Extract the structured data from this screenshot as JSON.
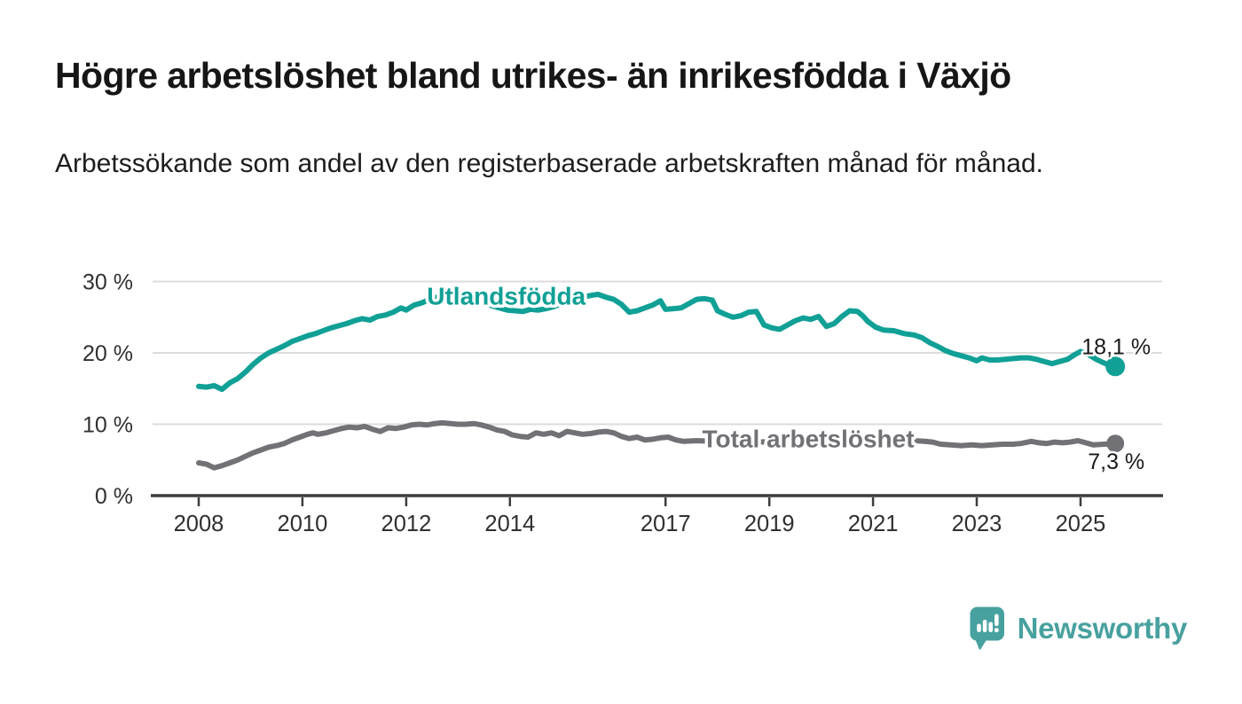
{
  "header": {
    "title": "Högre arbetslöshet bland utrikes- än inrikesfödda i Växjö",
    "subtitle": "Arbetssökande som andel av den registerbaserade arbetskraften månad för månad."
  },
  "chart_data": {
    "type": "line",
    "unit": "%",
    "grid": true,
    "colors": {
      "gridline": "#dcdcdc",
      "axis": "#3d3d3d",
      "axis_text": "#303030",
      "end_label_text": "#1a1a1a"
    },
    "x_axis": {
      "range": [
        2007.1,
        2026.6
      ],
      "ticks": [
        {
          "year": 2008,
          "label": "2008"
        },
        {
          "year": 2010,
          "label": "2010"
        },
        {
          "year": 2012,
          "label": "2012"
        },
        {
          "year": 2014,
          "label": "2014"
        },
        {
          "year": 2017,
          "label": "2017"
        },
        {
          "year": 2019,
          "label": "2019"
        },
        {
          "year": 2021,
          "label": "2021"
        },
        {
          "year": 2023,
          "label": "2023"
        },
        {
          "year": 2025,
          "label": "2025"
        }
      ]
    },
    "y_axis": {
      "range": [
        0,
        31
      ],
      "ticks": [
        {
          "value": 0,
          "label": "0 %"
        },
        {
          "value": 10,
          "label": "10 %"
        },
        {
          "value": 20,
          "label": "20 %"
        },
        {
          "value": 30,
          "label": "30 %"
        }
      ]
    },
    "series": [
      {
        "name": "Utlandsfödda",
        "color": "#10A096",
        "label_anchor": {
          "year": 2013.93,
          "value": 27.95
        },
        "end_label": "18,1 %",
        "end_value": 18.1,
        "end_label_position": "above",
        "points": [
          [
            2008.0,
            15.3
          ],
          [
            2008.15,
            15.2
          ],
          [
            2008.3,
            15.4
          ],
          [
            2008.45,
            14.9
          ],
          [
            2008.6,
            15.8
          ],
          [
            2008.75,
            16.4
          ],
          [
            2008.9,
            17.3
          ],
          [
            2009.05,
            18.4
          ],
          [
            2009.2,
            19.3
          ],
          [
            2009.35,
            20.0
          ],
          [
            2009.5,
            20.5
          ],
          [
            2009.65,
            21.0
          ],
          [
            2009.8,
            21.6
          ],
          [
            2009.95,
            22.0
          ],
          [
            2010.1,
            22.4
          ],
          [
            2010.25,
            22.7
          ],
          [
            2010.4,
            23.1
          ],
          [
            2010.55,
            23.5
          ],
          [
            2010.7,
            23.8
          ],
          [
            2010.85,
            24.1
          ],
          [
            2011.0,
            24.5
          ],
          [
            2011.15,
            24.8
          ],
          [
            2011.3,
            24.6
          ],
          [
            2011.45,
            25.1
          ],
          [
            2011.6,
            25.3
          ],
          [
            2011.75,
            25.7
          ],
          [
            2011.9,
            26.3
          ],
          [
            2012.0,
            26.0
          ],
          [
            2012.15,
            26.7
          ],
          [
            2012.3,
            27.0
          ],
          [
            2012.45,
            27.5
          ],
          [
            2012.6,
            27.8
          ],
          [
            2012.75,
            27.6
          ],
          [
            2012.9,
            27.8
          ],
          [
            2013.05,
            27.6
          ],
          [
            2013.2,
            27.8
          ],
          [
            2013.35,
            27.4
          ],
          [
            2013.5,
            27.1
          ],
          [
            2013.65,
            26.6
          ],
          [
            2013.8,
            26.3
          ],
          [
            2013.95,
            26.0
          ],
          [
            2014.1,
            25.9
          ],
          [
            2014.25,
            25.8
          ],
          [
            2014.4,
            26.1
          ],
          [
            2014.55,
            26.0
          ],
          [
            2014.7,
            26.2
          ],
          [
            2014.85,
            26.5
          ],
          [
            2015.0,
            26.9
          ],
          [
            2015.15,
            27.3
          ],
          [
            2015.3,
            27.6
          ],
          [
            2015.45,
            27.9
          ],
          [
            2015.6,
            28.1
          ],
          [
            2015.7,
            28.2
          ],
          [
            2015.85,
            27.8
          ],
          [
            2016.0,
            27.5
          ],
          [
            2016.15,
            26.8
          ],
          [
            2016.3,
            25.7
          ],
          [
            2016.45,
            25.9
          ],
          [
            2016.6,
            26.3
          ],
          [
            2016.75,
            26.7
          ],
          [
            2016.9,
            27.3
          ],
          [
            2017.0,
            26.1
          ],
          [
            2017.15,
            26.2
          ],
          [
            2017.3,
            26.3
          ],
          [
            2017.45,
            26.9
          ],
          [
            2017.6,
            27.5
          ],
          [
            2017.75,
            27.6
          ],
          [
            2017.9,
            27.4
          ],
          [
            2018.0,
            25.9
          ],
          [
            2018.15,
            25.4
          ],
          [
            2018.3,
            25.0
          ],
          [
            2018.45,
            25.2
          ],
          [
            2018.6,
            25.7
          ],
          [
            2018.75,
            25.8
          ],
          [
            2018.9,
            23.9
          ],
          [
            2019.05,
            23.5
          ],
          [
            2019.2,
            23.3
          ],
          [
            2019.35,
            23.9
          ],
          [
            2019.5,
            24.5
          ],
          [
            2019.65,
            24.9
          ],
          [
            2019.8,
            24.7
          ],
          [
            2019.95,
            25.1
          ],
          [
            2020.1,
            23.7
          ],
          [
            2020.25,
            24.1
          ],
          [
            2020.4,
            25.1
          ],
          [
            2020.55,
            25.9
          ],
          [
            2020.7,
            25.8
          ],
          [
            2020.8,
            25.2
          ],
          [
            2020.9,
            24.4
          ],
          [
            2021.05,
            23.6
          ],
          [
            2021.2,
            23.2
          ],
          [
            2021.4,
            23.1
          ],
          [
            2021.6,
            22.7
          ],
          [
            2021.8,
            22.5
          ],
          [
            2021.95,
            22.1
          ],
          [
            2022.1,
            21.4
          ],
          [
            2022.25,
            20.9
          ],
          [
            2022.4,
            20.3
          ],
          [
            2022.55,
            19.9
          ],
          [
            2022.7,
            19.6
          ],
          [
            2022.85,
            19.3
          ],
          [
            2023.0,
            18.9
          ],
          [
            2023.1,
            19.3
          ],
          [
            2023.25,
            19.0
          ],
          [
            2023.4,
            19.0
          ],
          [
            2023.55,
            19.1
          ],
          [
            2023.7,
            19.2
          ],
          [
            2023.85,
            19.3
          ],
          [
            2024.0,
            19.3
          ],
          [
            2024.15,
            19.1
          ],
          [
            2024.3,
            18.8
          ],
          [
            2024.45,
            18.5
          ],
          [
            2024.6,
            18.8
          ],
          [
            2024.75,
            19.1
          ],
          [
            2024.9,
            19.8
          ],
          [
            2025.0,
            20.2
          ],
          [
            2025.15,
            19.8
          ],
          [
            2025.3,
            19.1
          ],
          [
            2025.45,
            18.6
          ],
          [
            2025.55,
            18.3
          ],
          [
            2025.67,
            18.1
          ]
        ]
      },
      {
        "name": "Total arbetslöshet",
        "color": "#717176",
        "label_anchor": {
          "year": 2019.75,
          "value": 7.95
        },
        "end_label": "7,3 %",
        "end_value": 7.3,
        "end_label_position": "below",
        "points": [
          [
            2008.0,
            4.6
          ],
          [
            2008.15,
            4.4
          ],
          [
            2008.3,
            3.9
          ],
          [
            2008.45,
            4.2
          ],
          [
            2008.6,
            4.6
          ],
          [
            2008.75,
            5.0
          ],
          [
            2008.9,
            5.5
          ],
          [
            2009.05,
            6.0
          ],
          [
            2009.2,
            6.4
          ],
          [
            2009.35,
            6.8
          ],
          [
            2009.5,
            7.0
          ],
          [
            2009.65,
            7.3
          ],
          [
            2009.8,
            7.8
          ],
          [
            2009.95,
            8.2
          ],
          [
            2010.1,
            8.6
          ],
          [
            2010.2,
            8.8
          ],
          [
            2010.3,
            8.6
          ],
          [
            2010.45,
            8.8
          ],
          [
            2010.6,
            9.1
          ],
          [
            2010.75,
            9.4
          ],
          [
            2010.9,
            9.6
          ],
          [
            2011.05,
            9.5
          ],
          [
            2011.2,
            9.7
          ],
          [
            2011.35,
            9.3
          ],
          [
            2011.5,
            9.0
          ],
          [
            2011.65,
            9.5
          ],
          [
            2011.8,
            9.4
          ],
          [
            2011.95,
            9.6
          ],
          [
            2012.1,
            9.9
          ],
          [
            2012.25,
            10.0
          ],
          [
            2012.4,
            9.9
          ],
          [
            2012.55,
            10.1
          ],
          [
            2012.7,
            10.2
          ],
          [
            2012.85,
            10.1
          ],
          [
            2013.0,
            10.0
          ],
          [
            2013.15,
            10.0
          ],
          [
            2013.3,
            10.1
          ],
          [
            2013.45,
            9.9
          ],
          [
            2013.6,
            9.6
          ],
          [
            2013.75,
            9.2
          ],
          [
            2013.9,
            9.0
          ],
          [
            2014.05,
            8.5
          ],
          [
            2014.2,
            8.3
          ],
          [
            2014.35,
            8.2
          ],
          [
            2014.5,
            8.8
          ],
          [
            2014.65,
            8.6
          ],
          [
            2014.8,
            8.8
          ],
          [
            2014.95,
            8.4
          ],
          [
            2015.1,
            9.0
          ],
          [
            2015.25,
            8.8
          ],
          [
            2015.4,
            8.6
          ],
          [
            2015.55,
            8.7
          ],
          [
            2015.7,
            8.9
          ],
          [
            2015.85,
            9.0
          ],
          [
            2016.0,
            8.8
          ],
          [
            2016.15,
            8.3
          ],
          [
            2016.3,
            8.0
          ],
          [
            2016.45,
            8.2
          ],
          [
            2016.6,
            7.8
          ],
          [
            2016.75,
            7.9
          ],
          [
            2016.9,
            8.1
          ],
          [
            2017.05,
            8.2
          ],
          [
            2017.2,
            7.8
          ],
          [
            2017.35,
            7.6
          ],
          [
            2017.6,
            7.7
          ],
          [
            2017.9,
            7.6
          ],
          [
            2018.2,
            7.5
          ],
          [
            2018.5,
            7.6
          ],
          [
            2018.8,
            7.5
          ],
          [
            2019.1,
            7.6
          ],
          [
            2019.4,
            7.7
          ],
          [
            2019.7,
            7.8
          ],
          [
            2020.0,
            8.0
          ],
          [
            2020.3,
            8.3
          ],
          [
            2020.6,
            8.2
          ],
          [
            2020.9,
            8.0
          ],
          [
            2021.2,
            7.9
          ],
          [
            2021.5,
            7.8
          ],
          [
            2021.8,
            7.7
          ],
          [
            2022.0,
            7.6
          ],
          [
            2022.15,
            7.5
          ],
          [
            2022.3,
            7.2
          ],
          [
            2022.5,
            7.1
          ],
          [
            2022.7,
            7.0
          ],
          [
            2022.9,
            7.1
          ],
          [
            2023.1,
            7.0
          ],
          [
            2023.3,
            7.1
          ],
          [
            2023.5,
            7.2
          ],
          [
            2023.7,
            7.2
          ],
          [
            2023.85,
            7.3
          ],
          [
            2024.05,
            7.6
          ],
          [
            2024.2,
            7.4
          ],
          [
            2024.35,
            7.3
          ],
          [
            2024.5,
            7.5
          ],
          [
            2024.65,
            7.4
          ],
          [
            2024.8,
            7.5
          ],
          [
            2024.95,
            7.7
          ],
          [
            2025.1,
            7.4
          ],
          [
            2025.25,
            7.1
          ],
          [
            2025.45,
            7.2
          ],
          [
            2025.67,
            7.3
          ]
        ]
      }
    ],
    "title": "Högre arbetslöshet bland utrikes- än inrikesfödda i Växjö",
    "xlabel": "",
    "ylabel": "Arbetssökande som andel av den registerbaserade arbetskraften"
  },
  "footer": {
    "brand": "Newsworthy",
    "brand_color": "#47A19F",
    "logo_icon": "newsworthy-speech-bubble-chart-icon"
  }
}
